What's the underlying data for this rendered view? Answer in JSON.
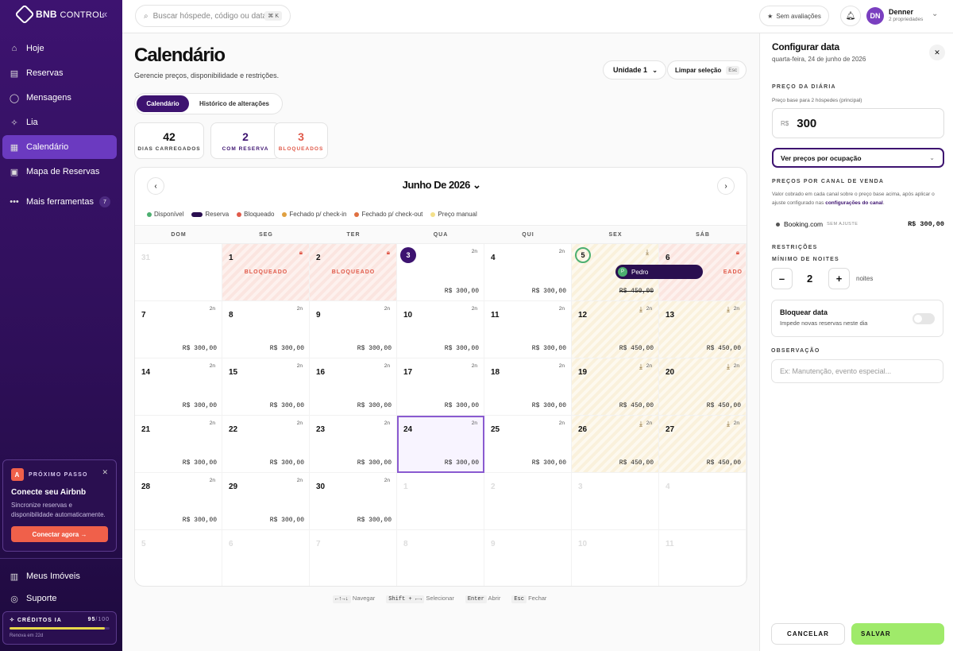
{
  "app": {
    "logo_main": "BNB",
    "logo_sub": "CONTROL"
  },
  "sidebar": {
    "items": [
      {
        "label": "Hoje"
      },
      {
        "label": "Reservas"
      },
      {
        "label": "Mensagens"
      },
      {
        "label": "Lia"
      },
      {
        "label": "Calendário"
      },
      {
        "label": "Mapa de Reservas"
      },
      {
        "label": "Mais ferramentas",
        "badge": "7"
      }
    ],
    "promo": {
      "step": "PRÓXIMO PASSO",
      "title": "Conecte seu Airbnb",
      "desc": "Sincronize reservas e disponibilidade automaticamente.",
      "button": "Conectar agora →"
    },
    "bottom": [
      {
        "label": "Meus Imóveis"
      },
      {
        "label": "Suporte"
      }
    ],
    "credits": {
      "label": "CRÉDITOS IA",
      "used": "95",
      "total": "/100",
      "fraction": 0.95,
      "renew": "Renova em 22d"
    }
  },
  "topbar": {
    "search_placeholder": "Buscar hóspede, código ou data",
    "search_kbd": "⌘ K",
    "rating": "Sem avaliações",
    "user": {
      "initials": "DN",
      "name": "Denner",
      "sub": "2 propriedades"
    }
  },
  "main": {
    "title": "Calendário",
    "subtitle": "Gerencie preços, disponibilidade e restrições.",
    "unit": "Unidade 1",
    "clear": "Limpar seleção",
    "clear_kbd": "Esc",
    "tabs": [
      "Calendário",
      "Histórico de alterações"
    ],
    "stats": [
      {
        "n": "42",
        "l": "DIAS CARREGADOS",
        "color": "#111111"
      },
      {
        "n": "2",
        "l": "COM RESERVA",
        "color": "#3d1370"
      },
      {
        "n": "3",
        "l": "BLOQUEADOS",
        "color": "#e05a4a"
      }
    ],
    "month": "Junho De 2026",
    "legend": [
      {
        "label": "Disponível",
        "color": "#4caf70"
      },
      {
        "label": "Reserva",
        "color": "#2a0f50"
      },
      {
        "label": "Bloqueado",
        "color": "#e05a4a"
      },
      {
        "label": "Fechado p/ check-in",
        "color": "#e0a040"
      },
      {
        "label": "Fechado p/ check-out",
        "color": "#e07040"
      },
      {
        "label": "Preço manual",
        "color": "#f3e08a"
      }
    ],
    "weekdays": [
      "DOM",
      "SEG",
      "TER",
      "QUA",
      "QUI",
      "SEX",
      "SÁB"
    ],
    "blocked_label": "BLOQUEADO",
    "booking_guest": "Pedro",
    "booking_initial": "P",
    "hints": [
      {
        "k": "←↑→↓",
        "t": "Navegar"
      },
      {
        "k": "Shift + ←→",
        "t": "Selecionar"
      },
      {
        "k": "Enter",
        "t": "Abrir"
      },
      {
        "k": "Esc",
        "t": "Fechar"
      }
    ]
  },
  "calendar": [
    {
      "d": "31",
      "out": true
    },
    {
      "d": "1",
      "block": true,
      "lock": true
    },
    {
      "d": "2",
      "block": true,
      "lock": true
    },
    {
      "d": "3",
      "today": true,
      "n": "2n",
      "p": "R$ 300,00"
    },
    {
      "d": "4",
      "n": "2n",
      "p": "R$ 300,00"
    },
    {
      "d": "5",
      "circle": true,
      "week": true,
      "dl": true,
      "p": "R$ 450,00",
      "strike": true
    },
    {
      "d": "6",
      "block": true,
      "lock": true,
      "blabel_right": "EADO"
    },
    {
      "d": "7",
      "n": "2n",
      "p": "R$ 300,00"
    },
    {
      "d": "8",
      "n": "2n",
      "p": "R$ 300,00"
    },
    {
      "d": "9",
      "n": "2n",
      "p": "R$ 300,00"
    },
    {
      "d": "10",
      "n": "2n",
      "p": "R$ 300,00"
    },
    {
      "d": "11",
      "n": "2n",
      "p": "R$ 300,00"
    },
    {
      "d": "12",
      "week": true,
      "dl": true,
      "n": "2n",
      "p": "R$ 450,00"
    },
    {
      "d": "13",
      "week": true,
      "dl": true,
      "n": "2n",
      "p": "R$ 450,00"
    },
    {
      "d": "14",
      "n": "2n",
      "p": "R$ 300,00"
    },
    {
      "d": "15",
      "n": "2n",
      "p": "R$ 300,00"
    },
    {
      "d": "16",
      "n": "2n",
      "p": "R$ 300,00"
    },
    {
      "d": "17",
      "n": "2n",
      "p": "R$ 300,00"
    },
    {
      "d": "18",
      "n": "2n",
      "p": "R$ 300,00"
    },
    {
      "d": "19",
      "week": true,
      "dl": true,
      "n": "2n",
      "p": "R$ 450,00"
    },
    {
      "d": "20",
      "week": true,
      "dl": true,
      "n": "2n",
      "p": "R$ 450,00"
    },
    {
      "d": "21",
      "n": "2n",
      "p": "R$ 300,00"
    },
    {
      "d": "22",
      "n": "2n",
      "p": "R$ 300,00"
    },
    {
      "d": "23",
      "n": "2n",
      "p": "R$ 300,00"
    },
    {
      "d": "24",
      "sel": true,
      "n": "2n",
      "p": "R$ 300,00"
    },
    {
      "d": "25",
      "n": "2n",
      "p": "R$ 300,00"
    },
    {
      "d": "26",
      "week": true,
      "dl": true,
      "n": "2n",
      "p": "R$ 450,00"
    },
    {
      "d": "27",
      "week": true,
      "dl": true,
      "n": "2n",
      "p": "R$ 450,00"
    },
    {
      "d": "28",
      "n": "2n",
      "p": "R$ 300,00"
    },
    {
      "d": "29",
      "n": "2n",
      "p": "R$ 300,00"
    },
    {
      "d": "30",
      "n": "2n",
      "p": "R$ 300,00"
    },
    {
      "d": "1",
      "out": true
    },
    {
      "d": "2",
      "out": true
    },
    {
      "d": "3",
      "out": true
    },
    {
      "d": "4",
      "out": true
    },
    {
      "d": "5",
      "out": true
    },
    {
      "d": "6",
      "out": true
    },
    {
      "d": "7",
      "out": true
    },
    {
      "d": "8",
      "out": true
    },
    {
      "d": "9",
      "out": true
    },
    {
      "d": "10",
      "out": true
    },
    {
      "d": "11",
      "out": true
    }
  ],
  "panel": {
    "title": "Configurar data",
    "date": "quarta-feira, 24 de junho de 2026",
    "price_section": "PREÇO DA DIÁRIA",
    "price_note": "Preço base para 2 hóspedes (principal)",
    "currency": "R$",
    "price": "300",
    "occupancy": "Ver preços por ocupação",
    "channel_section": "PREÇOS POR CANAL DE VENDA",
    "channel_note": "Valor cobrado em cada canal sobre o preço base acima, após aplicar o ajuste configurado nas",
    "channel_link": "configurações do canal",
    "channel": {
      "name": "Booking.com",
      "tag": "SEM AJUSTE",
      "price": "R$ 300,00"
    },
    "restrictions": "RESTRIÇÕES",
    "min_nights": "MÍNIMO DE NOITES",
    "nights_value": "2",
    "nights_unit": "noites",
    "block_title": "Bloquear data",
    "block_desc": "Impede novas reservas neste dia",
    "obs_section": "OBSERVAÇÃO",
    "obs_placeholder": "Ex: Manutenção, evento especial...",
    "cancel": "CANCELAR",
    "save": "SALVAR"
  }
}
